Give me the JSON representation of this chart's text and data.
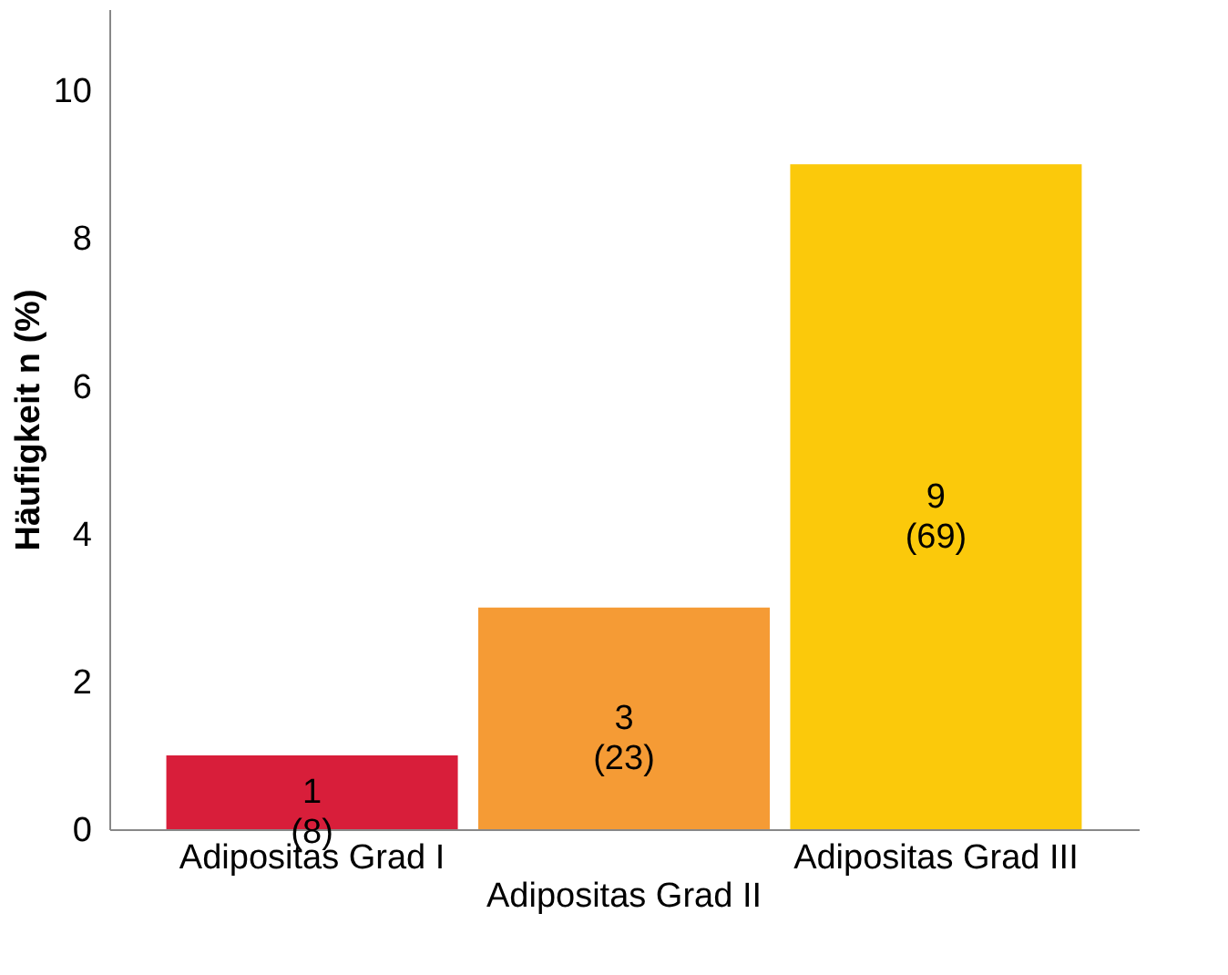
{
  "chart_data": {
    "type": "bar",
    "ylabel": "Häufigkeit n (%)",
    "categories": [
      "Adipositas Grad I",
      "Adipositas Grad II",
      "Adipositas Grad III"
    ],
    "values": [
      1,
      3,
      9
    ],
    "colors": [
      "#d81e3a",
      "#f59b35",
      "#fbc90b"
    ],
    "value_labels": [
      "1\n(8)",
      "3\n(23)",
      "9\n(69)"
    ],
    "ylim": [
      0,
      11.1
    ],
    "yticks": [
      0,
      2,
      4,
      6,
      8,
      10
    ],
    "grid": false,
    "legend": false
  }
}
